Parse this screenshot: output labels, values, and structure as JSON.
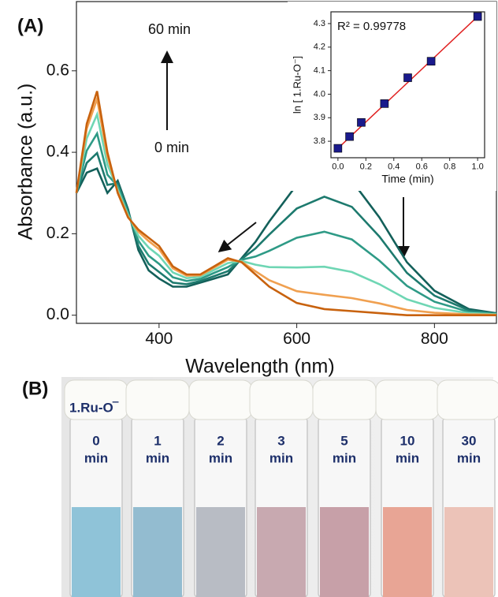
{
  "chart_data": [
    {
      "type": "line",
      "panel_label": "(A)",
      "x_label": "Wavelength (nm)",
      "y_label": "Absorbance (a.u.)",
      "annotations": [
        "60 min",
        "0 min"
      ],
      "xlim": [
        280,
        890
      ],
      "ylim": [
        -0.02,
        0.77
      ],
      "xticks": [
        400,
        600,
        800
      ],
      "yticks": [
        {
          "value": 0,
          "label": "0.0"
        },
        0.2,
        0.4,
        0.6
      ],
      "x": [
        280,
        295,
        310,
        325,
        340,
        355,
        370,
        385,
        400,
        420,
        440,
        460,
        480,
        500,
        520,
        540,
        560,
        600,
        640,
        680,
        720,
        760,
        800,
        850,
        890
      ],
      "series": [
        {
          "color": "#13605a",
          "values": [
            0.3,
            0.35,
            0.36,
            0.3,
            0.33,
            0.26,
            0.16,
            0.11,
            0.09,
            0.07,
            0.07,
            0.08,
            0.09,
            0.1,
            0.14,
            0.18,
            0.23,
            0.32,
            0.36,
            0.33,
            0.24,
            0.13,
            0.06,
            0.015,
            0.005
          ]
        },
        {
          "color": "#1d7a6e",
          "values": [
            0.3,
            0.374,
            0.398,
            0.32,
            0.324,
            0.256,
            0.17,
            0.126,
            0.106,
            0.08,
            0.076,
            0.084,
            0.096,
            0.108,
            0.138,
            0.164,
            0.198,
            0.262,
            0.291,
            0.266,
            0.193,
            0.104,
            0.048,
            0.012,
            0.004
          ]
        },
        {
          "color": "#2e9a86",
          "values": [
            0.3,
            0.404,
            0.446,
            0.345,
            0.317,
            0.251,
            0.183,
            0.146,
            0.126,
            0.093,
            0.084,
            0.089,
            0.104,
            0.118,
            0.136,
            0.144,
            0.158,
            0.19,
            0.205,
            0.186,
            0.134,
            0.072,
            0.033,
            0.008,
            0.003
          ]
        },
        {
          "color": "#6fd6b4",
          "values": [
            0.3,
            0.434,
            0.493,
            0.37,
            0.309,
            0.246,
            0.195,
            0.166,
            0.146,
            0.105,
            0.091,
            0.094,
            0.111,
            0.128,
            0.133,
            0.124,
            0.118,
            0.117,
            0.119,
            0.106,
            0.076,
            0.039,
            0.018,
            0.005,
            0.002
          ]
        },
        {
          "color": "#f0a050",
          "values": [
            0.3,
            0.458,
            0.531,
            0.39,
            0.303,
            0.242,
            0.205,
            0.182,
            0.162,
            0.115,
            0.097,
            0.098,
            0.117,
            0.136,
            0.131,
            0.108,
            0.086,
            0.059,
            0.05,
            0.042,
            0.029,
            0.013,
            0.006,
            0.002,
            0.001
          ]
        },
        {
          "color": "#c8620e",
          "values": [
            0.3,
            0.47,
            0.55,
            0.4,
            0.3,
            0.24,
            0.21,
            0.19,
            0.17,
            0.12,
            0.1,
            0.1,
            0.12,
            0.14,
            0.13,
            0.1,
            0.07,
            0.03,
            0.015,
            0.01,
            0.005,
            0,
            0,
            0,
            0
          ]
        }
      ]
    },
    {
      "type": "scatter",
      "x_label": "Time (min)",
      "y_label": "ln [ 1.Ru-O⁻]",
      "annotation": "R² = 0.99778",
      "xlim": [
        -0.05,
        1.05
      ],
      "ylim": [
        3.73,
        4.35
      ],
      "xticks": [
        {
          "value": 0,
          "label": "0.0"
        },
        0.2,
        0.4,
        0.6,
        0.8,
        {
          "value": 1,
          "label": "1.0"
        }
      ],
      "yticks": [
        3.8,
        3.9,
        {
          "value": 4,
          "label": "4.0"
        },
        4.1,
        4.2,
        4.3
      ],
      "x": [
        0,
        0.083,
        0.167,
        0.333,
        0.5,
        0.667,
        1.0
      ],
      "values": [
        3.77,
        3.82,
        3.88,
        3.96,
        4.07,
        4.14,
        4.33
      ],
      "color": "#1a1a8c",
      "fit_line": {
        "x": [
          0,
          1
        ],
        "values": [
          3.77,
          4.33
        ],
        "color": "#e02020"
      }
    }
  ],
  "panel_b": {
    "label": "(B)",
    "compound": "1.Ru-O‾",
    "vials": [
      {
        "time": "0",
        "unit": "min",
        "color": "#8fc3d8"
      },
      {
        "time": "1",
        "unit": "min",
        "color": "#93bcd0"
      },
      {
        "time": "2",
        "unit": "min",
        "color": "#b8bcc4"
      },
      {
        "time": "3",
        "unit": "min",
        "color": "#c8a9b0"
      },
      {
        "time": "5",
        "unit": "min",
        "color": "#c7a0a8"
      },
      {
        "time": "10",
        "unit": "min",
        "color": "#e8a595"
      },
      {
        "time": "30",
        "unit": "min",
        "color": "#ecc3b8"
      }
    ]
  }
}
